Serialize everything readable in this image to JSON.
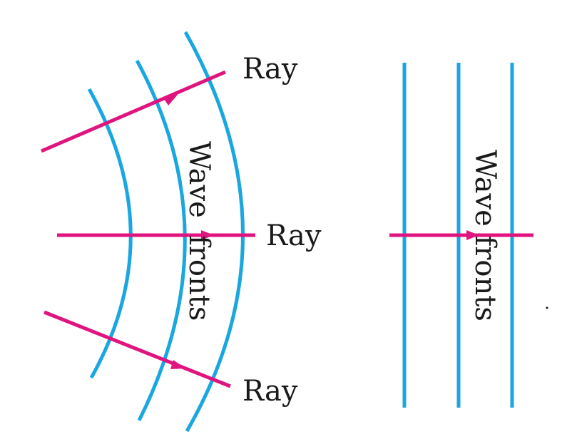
{
  "colors": {
    "wavefront": "#1aa7e0",
    "ray": "#e0147f",
    "text": "#1a1a1a"
  },
  "spherical": {
    "ray_labels": [
      "Ray",
      "Ray",
      "Ray"
    ],
    "wavefront_label_line1": "Wave",
    "wavefront_label_line2": "fronts"
  },
  "plane": {
    "wavefront_label": "Wave fronts"
  }
}
